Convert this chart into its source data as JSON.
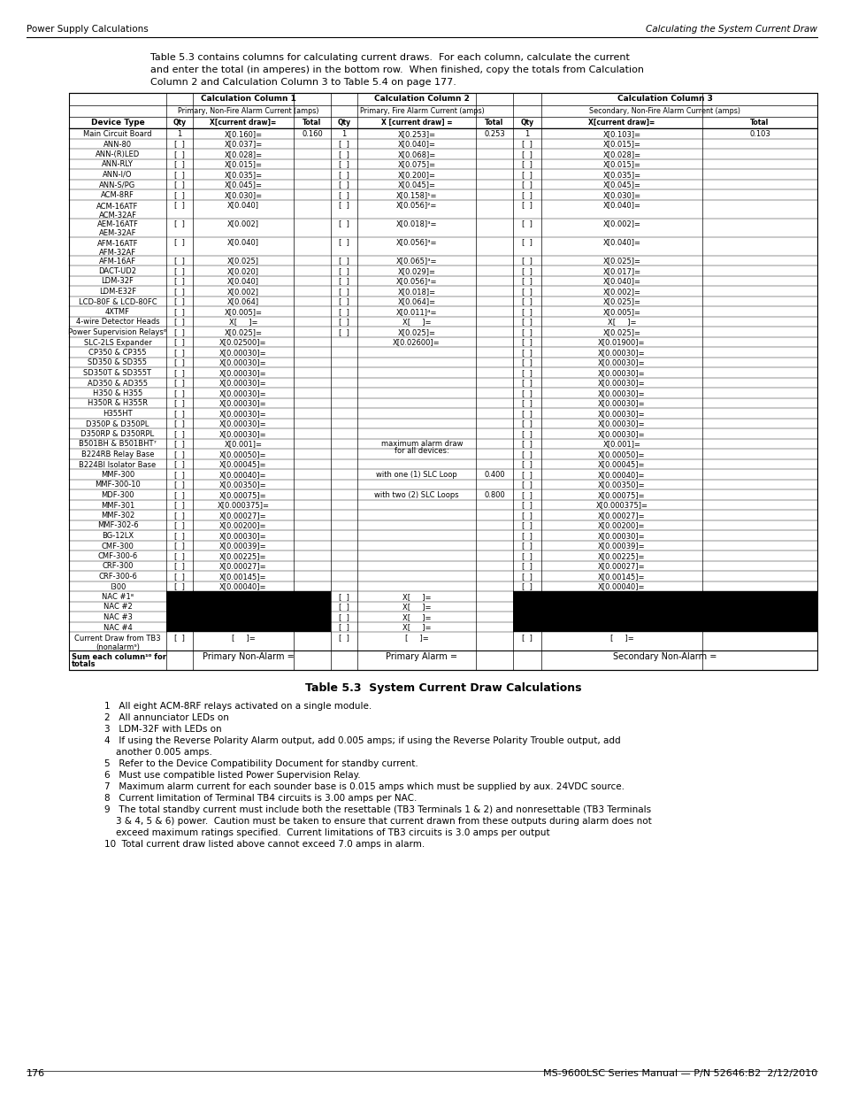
{
  "header_text_left": "Power Supply Calculations",
  "header_text_right": "Calculating the System Current Draw",
  "intro_text_line1": "Table 5.3 contains columns for calculating current draws.  For each column, calculate the current",
  "intro_text_line2": "and enter the total (in amperes) in the bottom row.  When finished, copy the totals from Calculation",
  "intro_text_line3": "Column 2 and Calculation Column 3 to Table 5.4 on page 177.",
  "col1_header1": "Calculation Column 1",
  "col1_header2": "Primary, Non-Fire Alarm Current (amps)",
  "col2_header1": "Calculation Column 2",
  "col2_header2": "Primary, Fire Alarm Current (amps)",
  "col3_header1": "Calculation Column 3",
  "col3_header2": "Secondary, Non-Fire Alarm Current (amps)",
  "subheaders": [
    "Device Type",
    "Qty",
    "X[current draw]=",
    "Total",
    "Qty",
    "X [current draw] =",
    "Total",
    "Qty",
    "X[current draw]=",
    "Total"
  ],
  "rows": [
    {
      "device": "Main Circuit Board",
      "c1_qty": "1",
      "c1_draw": "X[0.160]=",
      "c1_total": "0.160",
      "c2_qty": "1",
      "c2_draw": "X[0.253]=",
      "c2_total": "0.253",
      "c3_qty": "1",
      "c3_draw": "X[0.103]=",
      "c3_total": "0.103",
      "black_c1": false,
      "black_c2": false,
      "black_c3": false,
      "note": ""
    },
    {
      "device": "ANN-80",
      "c1_qty": "[  ]",
      "c1_draw": "X[0.037]=",
      "c1_total": "",
      "c2_qty": "[  ]",
      "c2_draw": "X[0.040]=",
      "c2_total": "",
      "c3_qty": "[  ]",
      "c3_draw": "X[0.015]=",
      "c3_total": "",
      "black_c1": false,
      "black_c2": false,
      "black_c3": false,
      "note": ""
    },
    {
      "device": "ANN-(R)LED",
      "c1_qty": "[  ]",
      "c1_draw": "X[0.028]=",
      "c1_total": "",
      "c2_qty": "[  ]",
      "c2_draw": "X[0.068]=",
      "c2_total": "",
      "c3_qty": "[  ]",
      "c3_draw": "X[0.028]=",
      "c3_total": "",
      "black_c1": false,
      "black_c2": false,
      "black_c3": false,
      "note": ""
    },
    {
      "device": "ANN-RLY",
      "c1_qty": "[  ]",
      "c1_draw": "X[0.015]=",
      "c1_total": "",
      "c2_qty": "[  ]",
      "c2_draw": "X[0.075]=",
      "c2_total": "",
      "c3_qty": "[  ]",
      "c3_draw": "X[0.015]=",
      "c3_total": "",
      "black_c1": false,
      "black_c2": false,
      "black_c3": false,
      "note": ""
    },
    {
      "device": "ANN-I/O",
      "c1_qty": "[  ]",
      "c1_draw": "X[0.035]=",
      "c1_total": "",
      "c2_qty": "[  ]",
      "c2_draw": "X[0.200]=",
      "c2_total": "",
      "c3_qty": "[  ]",
      "c3_draw": "X[0.035]=",
      "c3_total": "",
      "black_c1": false,
      "black_c2": false,
      "black_c3": false,
      "note": ""
    },
    {
      "device": "ANN-S/PG",
      "c1_qty": "[  ]",
      "c1_draw": "X[0.045]=",
      "c1_total": "",
      "c2_qty": "[  ]",
      "c2_draw": "X[0.045]=",
      "c2_total": "",
      "c3_qty": "[  ]",
      "c3_draw": "X[0.045]=",
      "c3_total": "",
      "black_c1": false,
      "black_c2": false,
      "black_c3": false,
      "note": ""
    },
    {
      "device": "ACM-8RF",
      "c1_qty": "[  ]",
      "c1_draw": "X[0.030]=",
      "c1_total": "",
      "c2_qty": "[  ]",
      "c2_draw": "X[0.158]¹=",
      "c2_total": "",
      "c3_qty": "[  ]",
      "c3_draw": "X[0.030]=",
      "c3_total": "",
      "black_c1": false,
      "black_c2": false,
      "black_c3": false,
      "note": ""
    },
    {
      "device": "ACM-16ATF\nACM-32AF",
      "c1_qty": "[  ]",
      "c1_draw": "X[0.040]",
      "c1_total": "",
      "c2_qty": "[  ]",
      "c2_draw": "X[0.056]²=",
      "c2_total": "",
      "c3_qty": "[  ]",
      "c3_draw": "X[0.040]=",
      "c3_total": "",
      "black_c1": false,
      "black_c2": false,
      "black_c3": false,
      "note": ""
    },
    {
      "device": "AEM-16ATF\nAEM-32AF",
      "c1_qty": "[  ]",
      "c1_draw": "X[0.002]",
      "c1_total": "",
      "c2_qty": "[  ]",
      "c2_draw": "X[0.018]³=",
      "c2_total": "",
      "c3_qty": "[  ]",
      "c3_draw": "X[0.002]=",
      "c3_total": "",
      "black_c1": false,
      "black_c2": false,
      "black_c3": false,
      "note": ""
    },
    {
      "device": "AFM-16ATF\nAFM-32AF",
      "c1_qty": "[  ]",
      "c1_draw": "X[0.040]",
      "c1_total": "",
      "c2_qty": "[  ]",
      "c2_draw": "X[0.056]³=",
      "c2_total": "",
      "c3_qty": "[  ]",
      "c3_draw": "X[0.040]=",
      "c3_total": "",
      "black_c1": false,
      "black_c2": false,
      "black_c3": false,
      "note": ""
    },
    {
      "device": "AFM-16AF",
      "c1_qty": "[  ]",
      "c1_draw": "X[0.025]",
      "c1_total": "",
      "c2_qty": "[  ]",
      "c2_draw": "X[0.065]³=",
      "c2_total": "",
      "c3_qty": "[  ]",
      "c3_draw": "X[0.025]=",
      "c3_total": "",
      "black_c1": false,
      "black_c2": false,
      "black_c3": false,
      "note": ""
    },
    {
      "device": "DACT-UD2",
      "c1_qty": "[  ]",
      "c1_draw": "X[0.020]",
      "c1_total": "",
      "c2_qty": "[  ]",
      "c2_draw": "X[0.029]=",
      "c2_total": "",
      "c3_qty": "[  ]",
      "c3_draw": "X[0.017]=",
      "c3_total": "",
      "black_c1": false,
      "black_c2": false,
      "black_c3": false,
      "note": ""
    },
    {
      "device": "LDM-32F",
      "c1_qty": "[  ]",
      "c1_draw": "X[0.040]",
      "c1_total": "",
      "c2_qty": "[  ]",
      "c2_draw": "X[0.056]³=",
      "c2_total": "",
      "c3_qty": "[  ]",
      "c3_draw": "X[0.040]=",
      "c3_total": "",
      "black_c1": false,
      "black_c2": false,
      "black_c3": false,
      "note": ""
    },
    {
      "device": "LDM-E32F",
      "c1_qty": "[  ]",
      "c1_draw": "X[0.002]",
      "c1_total": "",
      "c2_qty": "[  ]",
      "c2_draw": "X[0.018]=",
      "c2_total": "",
      "c3_qty": "[  ]",
      "c3_draw": "X[0.002]=",
      "c3_total": "",
      "black_c1": false,
      "black_c2": false,
      "black_c3": false,
      "note": ""
    },
    {
      "device": "LCD-80F & LCD-80FC",
      "c1_qty": "[  ]",
      "c1_draw": "X[0.064]",
      "c1_total": "",
      "c2_qty": "[  ]",
      "c2_draw": "X[0.064]=",
      "c2_total": "",
      "c3_qty": "[  ]",
      "c3_draw": "X[0.025]=",
      "c3_total": "",
      "black_c1": false,
      "black_c2": false,
      "black_c3": false,
      "note": ""
    },
    {
      "device": "4XTMF",
      "c1_qty": "[  ]",
      "c1_draw": "X[0.005]=",
      "c1_total": "",
      "c2_qty": "[  ]",
      "c2_draw": "X[0.011]⁴=",
      "c2_total": "",
      "c3_qty": "[  ]",
      "c3_draw": "X[0.005]=",
      "c3_total": "",
      "black_c1": false,
      "black_c2": false,
      "black_c3": false,
      "note": ""
    },
    {
      "device": "4-wire Detector Heads",
      "c1_qty": "[  ]",
      "c1_draw": "X[     ]=",
      "c1_total": "",
      "c2_qty": "[  ]",
      "c2_draw": "X[     ]=",
      "c2_total": "",
      "c3_qty": "[  ]",
      "c3_draw": "X[     ]=",
      "c3_total": "",
      "black_c1": false,
      "black_c2": false,
      "black_c3": false,
      "note": ""
    },
    {
      "device": "Power Supervision Relays⁶",
      "c1_qty": "[  ]",
      "c1_draw": "X[0.025]=",
      "c1_total": "",
      "c2_qty": "[  ]",
      "c2_draw": "X[0.025]=",
      "c2_total": "",
      "c3_qty": "[  ]",
      "c3_draw": "X[0.025]=",
      "c3_total": "",
      "black_c1": false,
      "black_c2": false,
      "black_c3": false,
      "note": ""
    },
    {
      "device": "SLC-2LS Expander",
      "c1_qty": "[  ]",
      "c1_draw": "X[0.02500]=",
      "c1_total": "",
      "c2_qty": "",
      "c2_draw": "X[0.02600]=",
      "c2_total": "",
      "c3_qty": "[  ]",
      "c3_draw": "X[0.01900]=",
      "c3_total": "",
      "black_c1": false,
      "black_c2": false,
      "black_c3": false,
      "note": ""
    },
    {
      "device": "CP350 & CP355",
      "c1_qty": "[  ]",
      "c1_draw": "X[0.00030]=",
      "c1_total": "",
      "c2_qty": "",
      "c2_draw": "",
      "c2_total": "",
      "c3_qty": "[  ]",
      "c3_draw": "X[0.00030]=",
      "c3_total": "",
      "black_c1": false,
      "black_c2": false,
      "black_c3": false,
      "note": ""
    },
    {
      "device": "SD350 & SD355",
      "c1_qty": "[  ]",
      "c1_draw": "X[0.00030]=",
      "c1_total": "",
      "c2_qty": "",
      "c2_draw": "",
      "c2_total": "",
      "c3_qty": "[  ]",
      "c3_draw": "X[0.00030]=",
      "c3_total": "",
      "black_c1": false,
      "black_c2": false,
      "black_c3": false,
      "note": ""
    },
    {
      "device": "SD350T & SD355T",
      "c1_qty": "[  ]",
      "c1_draw": "X[0.00030]=",
      "c1_total": "",
      "c2_qty": "",
      "c2_draw": "",
      "c2_total": "",
      "c3_qty": "[  ]",
      "c3_draw": "X[0.00030]=",
      "c3_total": "",
      "black_c1": false,
      "black_c2": false,
      "black_c3": false,
      "note": ""
    },
    {
      "device": "AD350 & AD355",
      "c1_qty": "[  ]",
      "c1_draw": "X[0.00030]=",
      "c1_total": "",
      "c2_qty": "",
      "c2_draw": "",
      "c2_total": "",
      "c3_qty": "[  ]",
      "c3_draw": "X[0.00030]=",
      "c3_total": "",
      "black_c1": false,
      "black_c2": false,
      "black_c3": false,
      "note": ""
    },
    {
      "device": "H350 & H355",
      "c1_qty": "[  ]",
      "c1_draw": "X[0.00030]=",
      "c1_total": "",
      "c2_qty": "",
      "c2_draw": "",
      "c2_total": "",
      "c3_qty": "[  ]",
      "c3_draw": "X[0.00030]=",
      "c3_total": "",
      "black_c1": false,
      "black_c2": false,
      "black_c3": false,
      "note": ""
    },
    {
      "device": "H350R & H355R",
      "c1_qty": "[  ]",
      "c1_draw": "X[0.00030]=",
      "c1_total": "",
      "c2_qty": "",
      "c2_draw": "",
      "c2_total": "",
      "c3_qty": "[  ]",
      "c3_draw": "X[0.00030]=",
      "c3_total": "",
      "black_c1": false,
      "black_c2": false,
      "black_c3": false,
      "note": ""
    },
    {
      "device": "H355HT",
      "c1_qty": "[  ]",
      "c1_draw": "X[0.00030]=",
      "c1_total": "",
      "c2_qty": "",
      "c2_draw": "",
      "c2_total": "",
      "c3_qty": "[  ]",
      "c3_draw": "X[0.00030]=",
      "c3_total": "",
      "black_c1": false,
      "black_c2": false,
      "black_c3": false,
      "note": ""
    },
    {
      "device": "D350P & D350PL",
      "c1_qty": "[  ]",
      "c1_draw": "X[0.00030]=",
      "c1_total": "",
      "c2_qty": "",
      "c2_draw": "",
      "c2_total": "",
      "c3_qty": "[  ]",
      "c3_draw": "X[0.00030]=",
      "c3_total": "",
      "black_c1": false,
      "black_c2": false,
      "black_c3": false,
      "note": ""
    },
    {
      "device": "D350RP & D350RPL",
      "c1_qty": "[  ]",
      "c1_draw": "X[0.00030]=",
      "c1_total": "",
      "c2_qty": "",
      "c2_draw": "",
      "c2_total": "",
      "c3_qty": "[  ]",
      "c3_draw": "X[0.00030]=",
      "c3_total": "",
      "black_c1": false,
      "black_c2": false,
      "black_c3": false,
      "note": ""
    },
    {
      "device": "B501BH & B501BHT⁷",
      "c1_qty": "[  ]",
      "c1_draw": "X[0.001]=",
      "c1_total": "",
      "c2_qty": "",
      "c2_draw": "note_alarm",
      "c2_total": "",
      "c3_qty": "[  ]",
      "c3_draw": "X[0.001]=",
      "c3_total": "",
      "black_c1": false,
      "black_c2": false,
      "black_c3": false,
      "note": ""
    },
    {
      "device": "B224RB Relay Base",
      "c1_qty": "[  ]",
      "c1_draw": "X[0.00050]=",
      "c1_total": "",
      "c2_qty": "",
      "c2_draw": "",
      "c2_total": "",
      "c3_qty": "[  ]",
      "c3_draw": "X[0.00050]=",
      "c3_total": "",
      "black_c1": false,
      "black_c2": false,
      "black_c3": false,
      "note": ""
    },
    {
      "device": "B224BI Isolator Base",
      "c1_qty": "[  ]",
      "c1_draw": "X[0.00045]=",
      "c1_total": "",
      "c2_qty": "",
      "c2_draw": "",
      "c2_total": "",
      "c3_qty": "[  ]",
      "c3_draw": "X[0.00045]=",
      "c3_total": "",
      "black_c1": false,
      "black_c2": false,
      "black_c3": false,
      "note": ""
    },
    {
      "device": "MMF-300",
      "c1_qty": "[  ]",
      "c1_draw": "X[0.00040]=",
      "c1_total": "",
      "c2_qty": "",
      "c2_draw": "with one (1) SLC Loop",
      "c2_total": "0.400",
      "c3_qty": "[  ]",
      "c3_draw": "X[0.00040]=",
      "c3_total": "",
      "black_c1": false,
      "black_c2": false,
      "black_c3": false,
      "note": ""
    },
    {
      "device": "MMF-300-10",
      "c1_qty": "[  ]",
      "c1_draw": "X[0.00350]=",
      "c1_total": "",
      "c2_qty": "",
      "c2_draw": "",
      "c2_total": "",
      "c3_qty": "[  ]",
      "c3_draw": "X[0.00350]=",
      "c3_total": "",
      "black_c1": false,
      "black_c2": false,
      "black_c3": false,
      "note": ""
    },
    {
      "device": "MDF-300",
      "c1_qty": "[  ]",
      "c1_draw": "X[0.00075]=",
      "c1_total": "",
      "c2_qty": "",
      "c2_draw": "with two (2) SLC Loops",
      "c2_total": "0.800",
      "c3_qty": "[  ]",
      "c3_draw": "X[0.00075]=",
      "c3_total": "",
      "black_c1": false,
      "black_c2": false,
      "black_c3": false,
      "note": ""
    },
    {
      "device": "MMF-301",
      "c1_qty": "[  ]",
      "c1_draw": "X[0.000375]=",
      "c1_total": "",
      "c2_qty": "",
      "c2_draw": "",
      "c2_total": "",
      "c3_qty": "[  ]",
      "c3_draw": "X[0.000375]=",
      "c3_total": "",
      "black_c1": false,
      "black_c2": false,
      "black_c3": false,
      "note": ""
    },
    {
      "device": "MMF-302",
      "c1_qty": "[  ]",
      "c1_draw": "X[0.00027]=",
      "c1_total": "",
      "c2_qty": "",
      "c2_draw": "",
      "c2_total": "",
      "c3_qty": "[  ]",
      "c3_draw": "X[0.00027]=",
      "c3_total": "",
      "black_c1": false,
      "black_c2": false,
      "black_c3": false,
      "note": ""
    },
    {
      "device": "MMF-302-6",
      "c1_qty": "[  ]",
      "c1_draw": "X[0.00200]=",
      "c1_total": "",
      "c2_qty": "",
      "c2_draw": "",
      "c2_total": "",
      "c3_qty": "[  ]",
      "c3_draw": "X[0.00200]=",
      "c3_total": "",
      "black_c1": false,
      "black_c2": false,
      "black_c3": false,
      "note": ""
    },
    {
      "device": "BG-12LX",
      "c1_qty": "[  ]",
      "c1_draw": "X[0.00030]=",
      "c1_total": "",
      "c2_qty": "",
      "c2_draw": "",
      "c2_total": "",
      "c3_qty": "[  ]",
      "c3_draw": "X[0.00030]=",
      "c3_total": "",
      "black_c1": false,
      "black_c2": false,
      "black_c3": false,
      "note": ""
    },
    {
      "device": "CMF-300",
      "c1_qty": "[  ]",
      "c1_draw": "X[0.00039]=",
      "c1_total": "",
      "c2_qty": "",
      "c2_draw": "",
      "c2_total": "",
      "c3_qty": "[  ]",
      "c3_draw": "X[0.00039]=",
      "c3_total": "",
      "black_c1": false,
      "black_c2": false,
      "black_c3": false,
      "note": ""
    },
    {
      "device": "CMF-300-6",
      "c1_qty": "[  ]",
      "c1_draw": "X[0.00225]=",
      "c1_total": "",
      "c2_qty": "",
      "c2_draw": "",
      "c2_total": "",
      "c3_qty": "[  ]",
      "c3_draw": "X[0.00225]=",
      "c3_total": "",
      "black_c1": false,
      "black_c2": false,
      "black_c3": false,
      "note": ""
    },
    {
      "device": "CRF-300",
      "c1_qty": "[  ]",
      "c1_draw": "X[0.00027]=",
      "c1_total": "",
      "c2_qty": "",
      "c2_draw": "",
      "c2_total": "",
      "c3_qty": "[  ]",
      "c3_draw": "X[0.00027]=",
      "c3_total": "",
      "black_c1": false,
      "black_c2": false,
      "black_c3": false,
      "note": ""
    },
    {
      "device": "CRF-300-6",
      "c1_qty": "[  ]",
      "c1_draw": "X[0.00145]=",
      "c1_total": "",
      "c2_qty": "",
      "c2_draw": "",
      "c2_total": "",
      "c3_qty": "[  ]",
      "c3_draw": "X[0.00145]=",
      "c3_total": "",
      "black_c1": false,
      "black_c2": false,
      "black_c3": false,
      "note": ""
    },
    {
      "device": "I300",
      "c1_qty": "[  ]",
      "c1_draw": "X[0.00040]=",
      "c1_total": "",
      "c2_qty": "",
      "c2_draw": "",
      "c2_total": "",
      "c3_qty": "[  ]",
      "c3_draw": "X[0.00040]=",
      "c3_total": "",
      "black_c1": false,
      "black_c2": false,
      "black_c3": false,
      "note": ""
    },
    {
      "device": "NAC #1⁸",
      "c1_qty": "",
      "c1_draw": "",
      "c1_total": "",
      "c2_qty": "[  ]",
      "c2_draw": "X[     ]=",
      "c2_total": "",
      "c3_qty": "",
      "c3_draw": "",
      "c3_total": "",
      "black_c1": true,
      "black_c2": false,
      "black_c3": true,
      "note": ""
    },
    {
      "device": "NAC #2",
      "c1_qty": "",
      "c1_draw": "",
      "c1_total": "",
      "c2_qty": "[  ]",
      "c2_draw": "X[     ]=",
      "c2_total": "",
      "c3_qty": "",
      "c3_draw": "",
      "c3_total": "",
      "black_c1": true,
      "black_c2": false,
      "black_c3": true,
      "note": ""
    },
    {
      "device": "NAC #3",
      "c1_qty": "",
      "c1_draw": "",
      "c1_total": "",
      "c2_qty": "[  ]",
      "c2_draw": "X[     ]=",
      "c2_total": "",
      "c3_qty": "",
      "c3_draw": "",
      "c3_total": "",
      "black_c1": true,
      "black_c2": false,
      "black_c3": true,
      "note": ""
    },
    {
      "device": "NAC #4",
      "c1_qty": "",
      "c1_draw": "",
      "c1_total": "",
      "c2_qty": "[  ]",
      "c2_draw": "X[     ]=",
      "c2_total": "",
      "c3_qty": "",
      "c3_draw": "",
      "c3_total": "",
      "black_c1": true,
      "black_c2": false,
      "black_c3": true,
      "note": ""
    },
    {
      "device": "Current Draw from TB3\n(nonalarm⁹)",
      "c1_qty": "[  ]",
      "c1_draw": "[     ]=",
      "c1_total": "",
      "c2_qty": "[  ]",
      "c2_draw": "[     ]=",
      "c2_total": "",
      "c3_qty": "[  ]",
      "c3_draw": "[     ]=",
      "c3_total": "",
      "black_c1": false,
      "black_c2": false,
      "black_c3": false,
      "note": ""
    }
  ],
  "footer_row": {
    "label": "Sum each column¹⁰ for\ntotals",
    "c1": "Primary Non-Alarm =",
    "c2": "Primary Alarm =",
    "c3": "Secondary Non-Alarm ="
  },
  "table_caption": "Table 5.3  System Current Draw Calculations",
  "footnotes": [
    "1   All eight ACM-8RF relays activated on a single module.",
    "2   All annunciator LEDs on",
    "3   LDM-32F with LEDs on",
    "4   If using the Reverse Polarity Alarm output, add 0.005 amps; if using the Reverse Polarity Trouble output, add",
    "    another 0.005 amps.",
    "5   Refer to the Device Compatibility Document for standby current.",
    "6   Must use compatible listed Power Supervision Relay.",
    "7   Maximum alarm current for each sounder base is 0.015 amps which must be supplied by aux. 24VDC source.",
    "8   Current limitation of Terminal TB4 circuits is 3.00 amps per NAC.",
    "9   The total standby current must include both the resettable (TB3 Terminals 1 & 2) and nonresettable (TB3 Terminals",
    "    3 & 4, 5 & 6) power.  Caution must be taken to ensure that current drawn from these outputs during alarm does not",
    "    exceed maximum ratings specified.  Current limitations of TB3 circuits is 3.0 amps per output",
    "10  Total current draw listed above cannot exceed 7.0 amps in alarm."
  ],
  "page_left": "176",
  "page_right": "MS-9600LSC Series Manual — P/N 52646:B2  2/12/2010"
}
